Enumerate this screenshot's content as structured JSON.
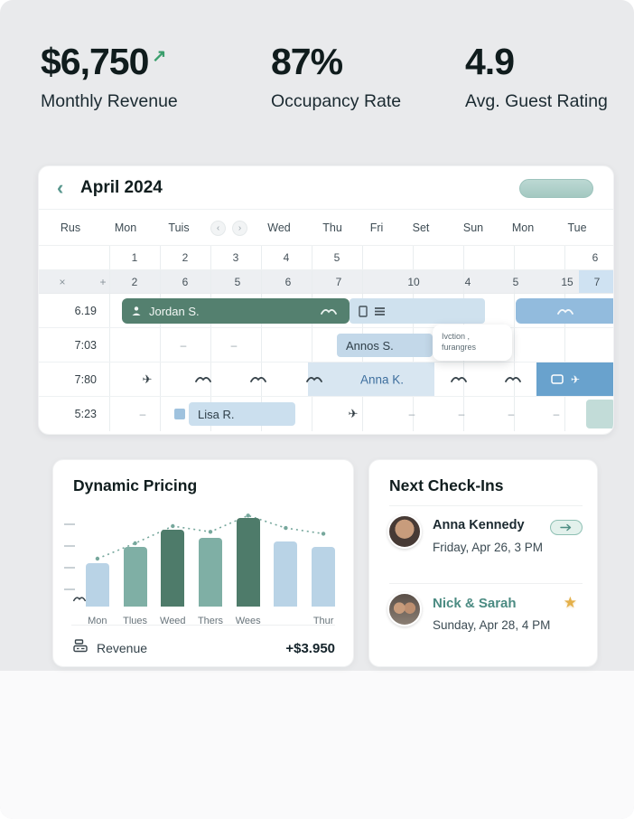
{
  "glyphs": {
    "dash": "–",
    "back": "‹",
    "prev": "‹",
    "next": "›",
    "plane": "✈",
    "star": "★"
  },
  "stats": [
    {
      "value": "$6,750",
      "trend": "↗",
      "label": "Monthly Revenue"
    },
    {
      "value": "87%",
      "label": "Occupancy Rate"
    },
    {
      "value": "4.9",
      "label": "Avg. Guest Rating"
    }
  ],
  "calendar": {
    "title": "April 2024",
    "day_headers": [
      "Rus",
      "Mon",
      "Tuis",
      "Wed",
      "Thu",
      "Fri",
      "Set",
      "Sun",
      "Mon",
      "Tue"
    ],
    "dates": [
      "1",
      "2",
      "3",
      "4",
      "5",
      "6"
    ],
    "week_prefix": [
      "×",
      "+"
    ],
    "week_row": [
      "2",
      "6",
      "5",
      "6",
      "7",
      "10",
      "4",
      "5",
      "15",
      "7"
    ],
    "times": [
      "6.19",
      "7:03",
      "7:80",
      "5:23"
    ],
    "bookings": {
      "jordan": "Jordan S.",
      "annos": "Annos S.",
      "anna": "Anna K.",
      "lisa": "Lisa R."
    },
    "tooltip": {
      "line1": "Ivction ,",
      "line2": "furangres"
    }
  },
  "pricing": {
    "title": "Dynamic Pricing",
    "footer": {
      "label": "Revenue",
      "value": "+$3.950"
    },
    "chart_data": {
      "type": "bar",
      "categories": [
        "Mon",
        "Tlues",
        "Weed",
        "Thers",
        "Wees",
        "",
        "Thur"
      ],
      "values": [
        45,
        62,
        80,
        72,
        92,
        68,
        62
      ],
      "colors": [
        "light",
        "teal",
        "dark",
        "teal",
        "dark",
        "light",
        "light"
      ],
      "trend": [
        50,
        66,
        84,
        78,
        95,
        82,
        76
      ],
      "ylim": [
        0,
        100
      ]
    }
  },
  "checkins": {
    "title": "Next Check-Ins",
    "items": [
      {
        "name": "Anna Kennedy",
        "time": "Friday, Apr 26, 3 PM"
      },
      {
        "name": "Nick & Sarah",
        "time": "Sunday, Apr 28, 4 PM"
      }
    ]
  }
}
